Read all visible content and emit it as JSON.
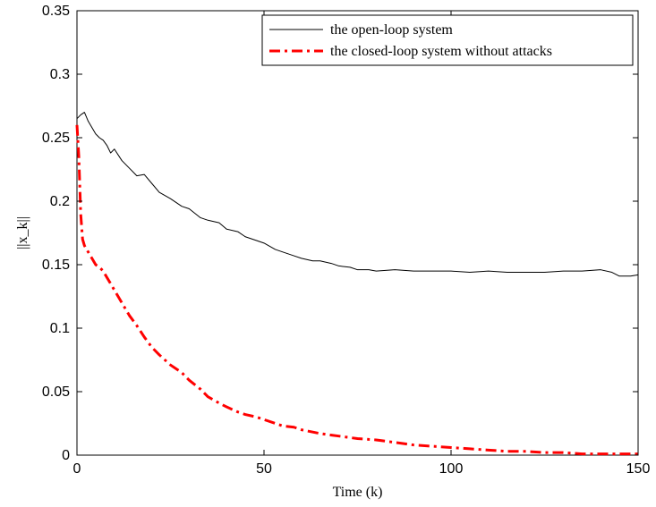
{
  "chart_data": {
    "type": "line",
    "xlabel": "Time (k)",
    "ylabel": "||x_k||",
    "xlim": [
      0,
      150
    ],
    "ylim": [
      0,
      0.35
    ],
    "xticks": [
      0,
      50,
      100,
      150
    ],
    "yticks": [
      0,
      0.05,
      0.1,
      0.15,
      0.2,
      0.25,
      0.3,
      0.35
    ],
    "xtick_labels": [
      "0",
      "50",
      "100",
      "150"
    ],
    "ytick_labels": [
      "0",
      "0.05",
      "0.1",
      "0.15",
      "0.2",
      "0.25",
      "0.3",
      "0.35"
    ],
    "grid": false,
    "legend_position": "top-right",
    "series": [
      {
        "name": "the open-loop system",
        "color": "#000000",
        "style": "solid",
        "x": [
          0,
          1,
          2,
          3,
          4,
          5,
          6,
          7,
          8,
          9,
          10,
          12,
          14,
          16,
          18,
          20,
          22,
          25,
          28,
          30,
          33,
          35,
          38,
          40,
          43,
          45,
          48,
          50,
          53,
          55,
          58,
          60,
          63,
          65,
          68,
          70,
          73,
          75,
          78,
          80,
          85,
          90,
          95,
          100,
          105,
          110,
          115,
          120,
          125,
          130,
          135,
          140,
          143,
          145,
          148,
          150
        ],
        "y": [
          0.265,
          0.268,
          0.27,
          0.263,
          0.258,
          0.253,
          0.25,
          0.248,
          0.244,
          0.238,
          0.241,
          0.232,
          0.226,
          0.22,
          0.221,
          0.214,
          0.207,
          0.202,
          0.196,
          0.194,
          0.187,
          0.185,
          0.183,
          0.178,
          0.176,
          0.172,
          0.169,
          0.167,
          0.162,
          0.16,
          0.157,
          0.155,
          0.153,
          0.153,
          0.151,
          0.149,
          0.148,
          0.146,
          0.146,
          0.145,
          0.146,
          0.145,
          0.145,
          0.145,
          0.144,
          0.145,
          0.144,
          0.144,
          0.144,
          0.145,
          0.145,
          0.146,
          0.144,
          0.141,
          0.141,
          0.142
        ]
      },
      {
        "name": "the closed-loop system without attacks",
        "color": "#ff0000",
        "style": "dashdot",
        "x": [
          0,
          0.5,
          1,
          1.5,
          2,
          3,
          4,
          5,
          6,
          7,
          8,
          10,
          12,
          14,
          16,
          18,
          20,
          22,
          25,
          28,
          30,
          33,
          35,
          38,
          40,
          43,
          45,
          48,
          50,
          53,
          55,
          58,
          60,
          65,
          70,
          75,
          80,
          85,
          90,
          95,
          100,
          105,
          110,
          115,
          120,
          125,
          130,
          135,
          140,
          145,
          150
        ],
        "y": [
          0.26,
          0.235,
          0.19,
          0.17,
          0.165,
          0.16,
          0.155,
          0.15,
          0.148,
          0.145,
          0.14,
          0.13,
          0.12,
          0.11,
          0.102,
          0.093,
          0.085,
          0.079,
          0.071,
          0.065,
          0.059,
          0.052,
          0.046,
          0.041,
          0.038,
          0.034,
          0.032,
          0.03,
          0.028,
          0.025,
          0.023,
          0.022,
          0.02,
          0.017,
          0.015,
          0.013,
          0.012,
          0.01,
          0.008,
          0.007,
          0.006,
          0.005,
          0.004,
          0.003,
          0.003,
          0.002,
          0.002,
          0.001,
          0.001,
          0.001,
          0.001
        ]
      }
    ]
  }
}
